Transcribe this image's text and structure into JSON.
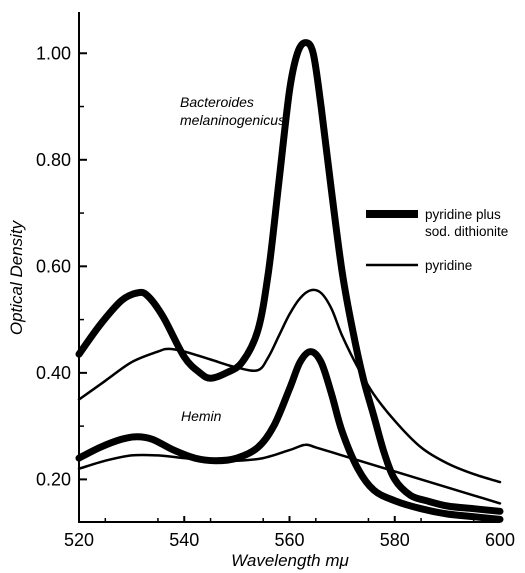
{
  "chart_data": {
    "type": "line",
    "title": "",
    "xlabel": "Wavelength mμ",
    "ylabel": "Optical Density",
    "xlim": [
      520,
      600
    ],
    "ylim": [
      0.12,
      1.1
    ],
    "x_ticks": [
      {
        "value": 520,
        "label": "520"
      },
      {
        "value": 540,
        "label": "540"
      },
      {
        "value": 560,
        "label": "560"
      },
      {
        "value": 580,
        "label": "580"
      },
      {
        "value": 600,
        "label": "600"
      }
    ],
    "y_ticks": [
      {
        "value": 0.2,
        "label": "0.20"
      },
      {
        "value": 0.4,
        "label": "0.40"
      },
      {
        "value": 0.6,
        "label": "0.60"
      },
      {
        "value": 0.8,
        "label": "0.80"
      },
      {
        "value": 1.0,
        "label": "1.00"
      }
    ],
    "grid": false,
    "legend": {
      "position": "right",
      "entries": [
        {
          "name": "pyridine plus\nsod. dithionite",
          "style": "thick"
        },
        {
          "name": "pyridine",
          "style": "thin"
        }
      ]
    },
    "annotations": [
      {
        "text": "Bacteroides melaninogenicus",
        "lines": [
          "Bacteroides",
          "melaninogenicus"
        ]
      },
      {
        "text": "Hemin",
        "lines": [
          "Hemin"
        ]
      }
    ],
    "series": [
      {
        "group": "Bacteroides melaninogenicus",
        "style": "thick",
        "x": [
          520,
          524,
          528,
          531,
          533,
          536,
          540,
          543,
          545,
          548,
          551,
          554,
          556,
          558,
          560,
          561.5,
          563,
          564.5,
          566,
          568,
          570,
          572,
          574,
          576,
          578,
          580,
          583,
          586,
          590,
          595,
          600
        ],
        "y": [
          0.435,
          0.49,
          0.535,
          0.55,
          0.545,
          0.505,
          0.43,
          0.4,
          0.39,
          0.4,
          0.42,
          0.48,
          0.59,
          0.76,
          0.93,
          1.0,
          1.02,
          1.0,
          0.9,
          0.74,
          0.59,
          0.48,
          0.39,
          0.32,
          0.25,
          0.2,
          0.17,
          0.16,
          0.15,
          0.145,
          0.14
        ]
      },
      {
        "group": "Bacteroides melaninogenicus",
        "style": "thin",
        "x": [
          520,
          525,
          530,
          535,
          537,
          540,
          545,
          550,
          554,
          556,
          558,
          560,
          562,
          564,
          566,
          568,
          570,
          573,
          576,
          580,
          585,
          590,
          595,
          600
        ],
        "y": [
          0.35,
          0.385,
          0.42,
          0.44,
          0.445,
          0.44,
          0.425,
          0.41,
          0.405,
          0.43,
          0.47,
          0.51,
          0.54,
          0.555,
          0.55,
          0.52,
          0.47,
          0.41,
          0.36,
          0.31,
          0.26,
          0.23,
          0.21,
          0.195
        ]
      },
      {
        "group": "Hemin",
        "style": "thick",
        "x": [
          520,
          524,
          528,
          531,
          534,
          538,
          542,
          546,
          550,
          554,
          557,
          560,
          562,
          564,
          566,
          568,
          570,
          573,
          576,
          580,
          585,
          590,
          595,
          600
        ],
        "y": [
          0.24,
          0.26,
          0.275,
          0.28,
          0.275,
          0.255,
          0.24,
          0.235,
          0.24,
          0.26,
          0.3,
          0.37,
          0.42,
          0.44,
          0.42,
          0.36,
          0.29,
          0.22,
          0.18,
          0.16,
          0.145,
          0.135,
          0.13,
          0.125
        ]
      },
      {
        "group": "Hemin",
        "style": "thin",
        "x": [
          520,
          525,
          530,
          535,
          540,
          545,
          550,
          555,
          560,
          563,
          565,
          570,
          575,
          580,
          585,
          590,
          595,
          600
        ],
        "y": [
          0.22,
          0.235,
          0.245,
          0.245,
          0.24,
          0.235,
          0.235,
          0.24,
          0.255,
          0.265,
          0.26,
          0.245,
          0.23,
          0.215,
          0.2,
          0.185,
          0.17,
          0.155
        ]
      }
    ]
  }
}
